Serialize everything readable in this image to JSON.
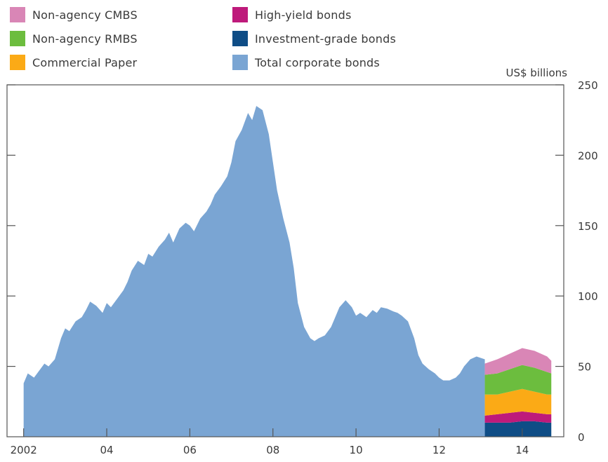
{
  "chart_data": {
    "type": "area",
    "unit_label": "US$ billions",
    "ylim": [
      0,
      250
    ],
    "yticks": [
      0,
      50,
      100,
      150,
      200,
      250
    ],
    "ytick_labels": [
      "0",
      "50",
      "100",
      "150",
      "200",
      "250"
    ],
    "xlim": [
      2001.6,
      2015.0
    ],
    "xticks": [
      2002,
      2004,
      2006,
      2008,
      2010,
      2012,
      2014
    ],
    "xtick_labels": [
      "2002",
      "04",
      "06",
      "08",
      "10",
      "12",
      "14"
    ],
    "legend": [
      {
        "name": "Non-agency CMBS",
        "color": "#d986b6"
      },
      {
        "name": "Non-agency RMBS",
        "color": "#6cbd3e"
      },
      {
        "name": "Commercial Paper",
        "color": "#fbaa16"
      },
      {
        "name": "High-yield bonds",
        "color": "#be1a7b"
      },
      {
        "name": "Investment-grade bonds",
        "color": "#0f4d86"
      },
      {
        "name": "Total corporate bonds",
        "color": "#7aa5d3"
      }
    ],
    "series": [
      {
        "name": "Total corporate bonds",
        "color": "#7aa5d3",
        "x": [
          2002.0,
          2002.1,
          2002.25,
          2002.4,
          2002.5,
          2002.6,
          2002.75,
          2002.9,
          2003.0,
          2003.1,
          2003.25,
          2003.4,
          2003.5,
          2003.6,
          2003.75,
          2003.9,
          2004.0,
          2004.1,
          2004.25,
          2004.4,
          2004.5,
          2004.6,
          2004.75,
          2004.9,
          2005.0,
          2005.1,
          2005.25,
          2005.4,
          2005.5,
          2005.6,
          2005.75,
          2005.9,
          2006.0,
          2006.1,
          2006.25,
          2006.4,
          2006.5,
          2006.6,
          2006.75,
          2006.9,
          2007.0,
          2007.1,
          2007.25,
          2007.4,
          2007.5,
          2007.6,
          2007.75,
          2007.9,
          2008.0,
          2008.1,
          2008.25,
          2008.4,
          2008.5,
          2008.6,
          2008.75,
          2008.9,
          2009.0,
          2009.1,
          2009.25,
          2009.4,
          2009.5,
          2009.6,
          2009.75,
          2009.9,
          2010.0,
          2010.1,
          2010.25,
          2010.4,
          2010.5,
          2010.6,
          2010.75,
          2010.9,
          2011.0,
          2011.1,
          2011.25,
          2011.4,
          2011.5,
          2011.6,
          2011.75,
          2011.9,
          2012.0,
          2012.1,
          2012.25,
          2012.4,
          2012.5,
          2012.6,
          2012.75,
          2012.9,
          2013.0,
          2013.1
        ],
        "values": [
          38,
          45,
          42,
          48,
          52,
          50,
          55,
          70,
          77,
          75,
          82,
          85,
          90,
          96,
          93,
          88,
          95,
          92,
          98,
          104,
          110,
          118,
          125,
          122,
          130,
          128,
          135,
          140,
          145,
          138,
          148,
          152,
          150,
          146,
          155,
          160,
          165,
          172,
          178,
          185,
          195,
          210,
          218,
          230,
          225,
          235,
          232,
          215,
          195,
          175,
          155,
          138,
          120,
          95,
          78,
          70,
          68,
          70,
          72,
          78,
          85,
          92,
          97,
          92,
          86,
          88,
          85,
          90,
          88,
          92,
          91,
          89,
          88,
          86,
          82,
          70,
          58,
          52,
          48,
          45,
          42,
          40,
          40,
          42,
          45,
          50,
          55,
          57,
          56,
          55
        ]
      },
      {
        "name": "Investment-grade bonds",
        "color": "#0f4d86",
        "x": [
          2013.1,
          2013.4,
          2013.7,
          2014.0,
          2014.3,
          2014.6,
          2014.7
        ],
        "values": [
          10,
          10,
          10,
          11,
          11,
          10,
          10
        ]
      },
      {
        "name": "High-yield bonds",
        "color": "#be1a7b",
        "x": [
          2013.1,
          2013.4,
          2013.7,
          2014.0,
          2014.3,
          2014.6,
          2014.7
        ],
        "values": [
          5,
          6,
          7,
          7,
          6,
          6,
          6
        ]
      },
      {
        "name": "Commercial Paper",
        "color": "#fbaa16",
        "x": [
          2013.1,
          2013.4,
          2013.7,
          2014.0,
          2014.3,
          2014.6,
          2014.7
        ],
        "values": [
          15,
          14,
          15,
          16,
          15,
          14,
          14
        ]
      },
      {
        "name": "Non-agency RMBS",
        "color": "#6cbd3e",
        "x": [
          2013.1,
          2013.4,
          2013.7,
          2014.0,
          2014.3,
          2014.6,
          2014.7
        ],
        "values": [
          14,
          15,
          16,
          17,
          17,
          16,
          15
        ]
      },
      {
        "name": "Non-agency CMBS",
        "color": "#d986b6",
        "x": [
          2013.1,
          2013.4,
          2013.7,
          2014.0,
          2014.3,
          2014.6,
          2014.7
        ],
        "values": [
          8,
          10,
          11,
          12,
          12,
          11,
          9
        ]
      }
    ]
  }
}
